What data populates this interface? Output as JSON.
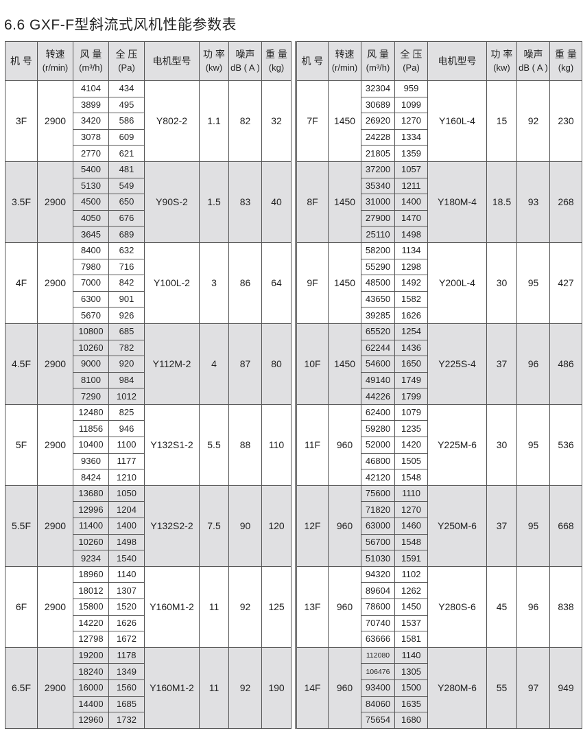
{
  "title": "6.6  GXF-F型斜流式风机性能参数表",
  "headers": [
    {
      "main": "机  号",
      "unit": ""
    },
    {
      "main": "转速",
      "unit": "(r/min)"
    },
    {
      "main": "风 量",
      "unit": "(m³/h)"
    },
    {
      "main": "全 压",
      "unit": "(Pa)"
    },
    {
      "main": "电机型号",
      "unit": ""
    },
    {
      "main": "功 率",
      "unit": "(kw)"
    },
    {
      "main": "噪声",
      "unit": "dB ( A )"
    },
    {
      "main": "重 量",
      "unit": "(kg)"
    }
  ],
  "left_groups": [
    {
      "model": "3F",
      "speed": "2900",
      "flow": [
        "4104",
        "3899",
        "3420",
        "3078",
        "2770"
      ],
      "pressure": [
        "434",
        "495",
        "586",
        "609",
        "621"
      ],
      "motor": "Y802-2",
      "power": "1.1",
      "noise": "82",
      "weight": "32"
    },
    {
      "model": "3.5F",
      "speed": "2900",
      "flow": [
        "5400",
        "5130",
        "4500",
        "4050",
        "3645"
      ],
      "pressure": [
        "481",
        "549",
        "650",
        "676",
        "689"
      ],
      "motor": "Y90S-2",
      "power": "1.5",
      "noise": "83",
      "weight": "40"
    },
    {
      "model": "4F",
      "speed": "2900",
      "flow": [
        "8400",
        "7980",
        "7000",
        "6300",
        "5670"
      ],
      "pressure": [
        "632",
        "716",
        "842",
        "901",
        "926"
      ],
      "motor": "Y100L-2",
      "power": "3",
      "noise": "86",
      "weight": "64"
    },
    {
      "model": "4.5F",
      "speed": "2900",
      "flow": [
        "10800",
        "10260",
        "9000",
        "8100",
        "7290"
      ],
      "pressure": [
        "685",
        "782",
        "920",
        "984",
        "1012"
      ],
      "motor": "Y112M-2",
      "power": "4",
      "noise": "87",
      "weight": "80"
    },
    {
      "model": "5F",
      "speed": "2900",
      "flow": [
        "12480",
        "11856",
        "10400",
        "9360",
        "8424"
      ],
      "pressure": [
        "825",
        "946",
        "1100",
        "1177",
        "1210"
      ],
      "motor": "Y132S1-2",
      "power": "5.5",
      "noise": "88",
      "weight": "110"
    },
    {
      "model": "5.5F",
      "speed": "2900",
      "flow": [
        "13680",
        "12996",
        "11400",
        "10260",
        "9234"
      ],
      "pressure": [
        "1050",
        "1204",
        "1400",
        "1498",
        "1540"
      ],
      "motor": "Y132S2-2",
      "power": "7.5",
      "noise": "90",
      "weight": "120"
    },
    {
      "model": "6F",
      "speed": "2900",
      "flow": [
        "18960",
        "18012",
        "15800",
        "14220",
        "12798"
      ],
      "pressure": [
        "1140",
        "1307",
        "1520",
        "1626",
        "1672"
      ],
      "motor": "Y160M1-2",
      "power": "11",
      "noise": "92",
      "weight": "125"
    },
    {
      "model": "6.5F",
      "speed": "2900",
      "flow": [
        "19200",
        "18240",
        "16000",
        "14400",
        "12960"
      ],
      "pressure": [
        "1178",
        "1349",
        "1560",
        "1685",
        "1732"
      ],
      "motor": "Y160M1-2",
      "power": "11",
      "noise": "92",
      "weight": "190"
    }
  ],
  "right_groups": [
    {
      "model": "7F",
      "speed": "1450",
      "flow": [
        "32304",
        "30689",
        "26920",
        "24228",
        "21805"
      ],
      "pressure": [
        "959",
        "1099",
        "1270",
        "1334",
        "1359"
      ],
      "motor": "Y160L-4",
      "power": "15",
      "noise": "92",
      "weight": "230"
    },
    {
      "model": "8F",
      "speed": "1450",
      "flow": [
        "37200",
        "35340",
        "31000",
        "27900",
        "25110"
      ],
      "pressure": [
        "1057",
        "1211",
        "1400",
        "1470",
        "1498"
      ],
      "motor": "Y180M-4",
      "power": "18.5",
      "noise": "93",
      "weight": "268"
    },
    {
      "model": "9F",
      "speed": "1450",
      "flow": [
        "58200",
        "55290",
        "48500",
        "43650",
        "39285"
      ],
      "pressure": [
        "1134",
        "1298",
        "1492",
        "1582",
        "1626"
      ],
      "motor": "Y200L-4",
      "power": "30",
      "noise": "95",
      "weight": "427"
    },
    {
      "model": "10F",
      "speed": "1450",
      "flow": [
        "65520",
        "62244",
        "54600",
        "49140",
        "44226"
      ],
      "pressure": [
        "1254",
        "1436",
        "1650",
        "1749",
        "1799"
      ],
      "motor": "Y225S-4",
      "power": "37",
      "noise": "96",
      "weight": "486"
    },
    {
      "model": "11F",
      "speed": "960",
      "flow": [
        "62400",
        "59280",
        "52000",
        "46800",
        "42120"
      ],
      "pressure": [
        "1079",
        "1235",
        "1420",
        "1505",
        "1548"
      ],
      "motor": "Y225M-6",
      "power": "30",
      "noise": "95",
      "weight": "536"
    },
    {
      "model": "12F",
      "speed": "960",
      "flow": [
        "75600",
        "71820",
        "63000",
        "56700",
        "51030"
      ],
      "pressure": [
        "1110",
        "1270",
        "1460",
        "1548",
        "1591"
      ],
      "motor": "Y250M-6",
      "power": "37",
      "noise": "95",
      "weight": "668"
    },
    {
      "model": "13F",
      "speed": "960",
      "flow": [
        "94320",
        "89604",
        "78600",
        "70740",
        "63666"
      ],
      "pressure": [
        "1102",
        "1262",
        "1450",
        "1537",
        "1581"
      ],
      "motor": "Y280S-6",
      "power": "45",
      "noise": "96",
      "weight": "838"
    },
    {
      "model": "14F",
      "speed": "960",
      "flow": [
        "112080",
        "106476",
        "93400",
        "84060",
        "75654"
      ],
      "pressure": [
        "1140",
        "1305",
        "1500",
        "1635",
        "1680"
      ],
      "motor": "Y280M-6",
      "power": "55",
      "noise": "97",
      "weight": "949"
    }
  ]
}
